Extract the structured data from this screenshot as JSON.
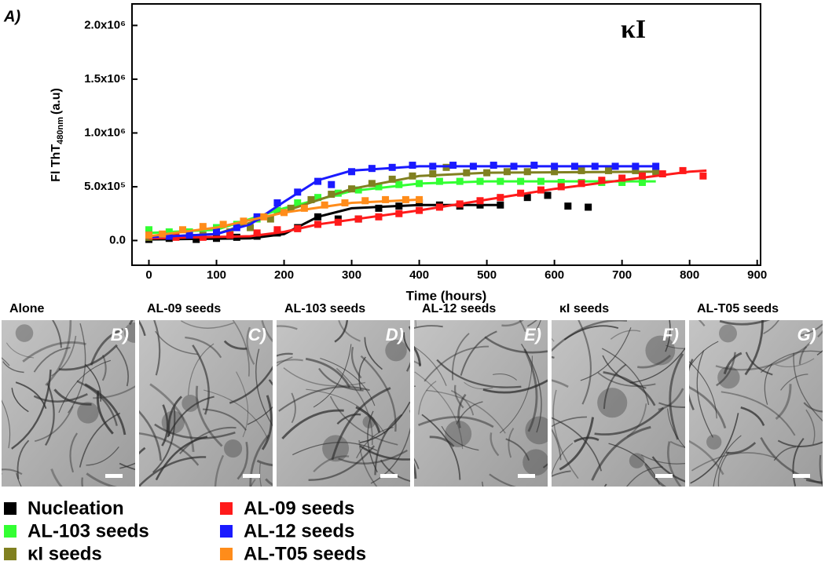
{
  "chart_data": {
    "type": "scatter",
    "panel_label": "A)",
    "annotation": "κI",
    "x_label": "Time (hours)",
    "y_label": {
      "main": "Fl ThT",
      "sub": "480nm",
      "unit": "(a.u)"
    },
    "xlim": [
      -25,
      905
    ],
    "xticks": [
      0,
      100,
      200,
      300,
      400,
      500,
      600,
      700,
      800,
      900
    ],
    "ylim": [
      -230000,
      2200000
    ],
    "yticks": [
      {
        "value": 0,
        "label": "0.0"
      },
      {
        "value": 500000,
        "label": "5.0x10⁵"
      },
      {
        "value": 1000000,
        "label": "1.0x10⁶"
      },
      {
        "value": 1500000,
        "label": "1.5x10⁶"
      },
      {
        "value": 2000000,
        "label": "2.0x10⁶"
      }
    ],
    "series": [
      {
        "name": "Nucleation",
        "color": "#000000",
        "x": [
          0,
          30,
          70,
          100,
          130,
          160,
          190,
          220,
          250,
          280,
          310,
          340,
          370,
          400,
          430,
          460,
          490,
          520,
          560,
          590,
          620,
          650
        ],
        "values": [
          10000,
          20000,
          10000,
          20000,
          30000,
          40000,
          70000,
          120000,
          220000,
          200000,
          200000,
          300000,
          320000,
          350000,
          330000,
          320000,
          330000,
          330000,
          400000,
          420000,
          320000,
          310000
        ],
        "fit_x": [
          0,
          150,
          200,
          250,
          300,
          400,
          520
        ],
        "fit_values": [
          10000,
          20000,
          60000,
          220000,
          300000,
          330000,
          330000
        ]
      },
      {
        "name": "AL-103 seeds",
        "color": "#33ff33",
        "x": [
          0,
          30,
          60,
          100,
          130,
          160,
          190,
          220,
          250,
          280,
          310,
          340,
          370,
          400,
          430,
          460,
          490,
          520,
          550,
          580,
          610,
          640,
          670,
          700,
          730
        ],
        "values": [
          100000,
          80000,
          80000,
          120000,
          150000,
          200000,
          280000,
          350000,
          400000,
          440000,
          470000,
          500000,
          520000,
          530000,
          550000,
          550000,
          550000,
          550000,
          550000,
          550000,
          540000,
          540000,
          540000,
          540000,
          540000
        ],
        "fit_x": [
          0,
          100,
          200,
          300,
          400,
          500,
          750
        ],
        "fit_values": [
          70000,
          100000,
          300000,
          460000,
          530000,
          550000,
          550000
        ]
      },
      {
        "name": "κI seeds",
        "color": "#808020",
        "x": [
          0,
          40,
          80,
          120,
          150,
          180,
          210,
          240,
          270,
          300,
          330,
          360,
          390,
          420,
          440,
          470,
          500,
          530,
          560,
          600,
          640,
          680,
          720,
          750
        ],
        "values": [
          30000,
          40000,
          50000,
          80000,
          120000,
          200000,
          300000,
          380000,
          430000,
          480000,
          530000,
          570000,
          600000,
          620000,
          680000,
          630000,
          630000,
          640000,
          640000,
          640000,
          650000,
          650000,
          650000,
          640000
        ],
        "fit_x": [
          0,
          100,
          200,
          300,
          400,
          500,
          750
        ],
        "fit_values": [
          30000,
          60000,
          270000,
          480000,
          600000,
          630000,
          640000
        ]
      },
      {
        "name": "AL-09 seeds",
        "color": "#ff1a1a",
        "x": [
          0,
          40,
          80,
          120,
          160,
          190,
          220,
          250,
          280,
          310,
          340,
          370,
          400,
          430,
          460,
          490,
          520,
          550,
          580,
          610,
          640,
          670,
          700,
          730,
          760,
          790,
          820
        ],
        "values": [
          50000,
          30000,
          30000,
          50000,
          70000,
          100000,
          110000,
          150000,
          170000,
          200000,
          220000,
          250000,
          280000,
          310000,
          340000,
          370000,
          400000,
          440000,
          470000,
          500000,
          530000,
          560000,
          580000,
          600000,
          620000,
          650000,
          600000
        ],
        "fit_x": [
          0,
          150,
          200,
          250,
          400,
          600,
          800,
          825
        ],
        "fit_values": [
          20000,
          40000,
          80000,
          150000,
          280000,
          480000,
          640000,
          650000
        ]
      },
      {
        "name": "AL-12 seeds",
        "color": "#1a1aff",
        "x": [
          0,
          30,
          60,
          100,
          130,
          160,
          190,
          220,
          250,
          270,
          300,
          330,
          360,
          390,
          420,
          450,
          480,
          510,
          540,
          570,
          600,
          630,
          660,
          690,
          720,
          750
        ],
        "values": [
          50000,
          40000,
          50000,
          80000,
          120000,
          220000,
          350000,
          450000,
          550000,
          520000,
          640000,
          670000,
          680000,
          700000,
          690000,
          700000,
          690000,
          700000,
          690000,
          700000,
          690000,
          690000,
          690000,
          690000,
          690000,
          690000
        ],
        "fit_x": [
          0,
          100,
          150,
          200,
          250,
          300,
          400,
          750
        ],
        "fit_values": [
          30000,
          60000,
          150000,
          360000,
          560000,
          650000,
          690000,
          690000
        ]
      },
      {
        "name": "AL-T05 seeds",
        "color": "#ff8c1a",
        "x": [
          0,
          20,
          50,
          80,
          110,
          140,
          170,
          200,
          230,
          260,
          290,
          320,
          350,
          380,
          400
        ],
        "values": [
          50000,
          60000,
          100000,
          130000,
          150000,
          180000,
          220000,
          260000,
          300000,
          330000,
          350000,
          370000,
          380000,
          380000,
          380000
        ],
        "fit_x": [
          0,
          100,
          200,
          300,
          400
        ],
        "fit_values": [
          40000,
          120000,
          260000,
          350000,
          380000
        ]
      }
    ]
  },
  "panels": [
    {
      "title": "Alone",
      "letter": "B)"
    },
    {
      "title": "AL-09  seeds",
      "letter": "C)"
    },
    {
      "title": "AL-103 seeds",
      "letter": "D)"
    },
    {
      "title": "AL-12 seeds",
      "letter": "E)"
    },
    {
      "title": "κI  seeds",
      "letter": "F)"
    },
    {
      "title": "AL-T05 seeds",
      "letter": "G)"
    }
  ]
}
